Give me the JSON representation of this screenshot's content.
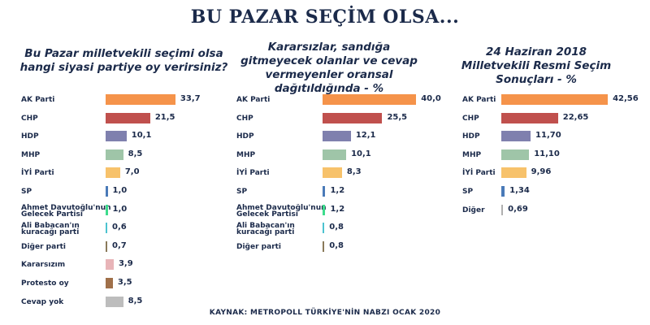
{
  "title": "BU PAZAR SEÇİM OLSA...",
  "source": "KAYNAK: METROPOLL TÜRKİYE'NİN NABZI OCAK 2020",
  "colors": {
    "AK Parti": "#f5934a",
    "CHP": "#c0504d",
    "HDP": "#7f80ae",
    "MHP": "#9fc5a8",
    "İYİ Parti": "#f7c26b",
    "SP": "#4a7ab8",
    "Ahmet Davutoğlu'nun Gelecek Partisi": "#3ddc8c",
    "Ali Babacan'ın kuracağı parti": "#4cc3d0",
    "Diğer parti": "#8a7a5a",
    "Diğer": "#b0b0b0",
    "Kararsızım": "#e8b4b8",
    "Protesto oy": "#a0704a",
    "Cevap yok": "#bdbdbd"
  },
  "chart_data": [
    {
      "type": "bar",
      "orientation": "horizontal",
      "title": "Bu Pazar milletvekili seçimi olsa hangi siyasi partiye oy verirsiniz?",
      "categories": [
        "AK Parti",
        "CHP",
        "HDP",
        "MHP",
        "İYİ Parti",
        "SP",
        "Ahmet Davutoğlu'nun Gelecek Partisi",
        "Ali Babacan'ın kuracağı parti",
        "Diğer parti",
        "Kararsızım",
        "Protesto oy",
        "Cevap yok"
      ],
      "values": [
        33.7,
        21.5,
        10.1,
        8.5,
        7.0,
        1.0,
        1.0,
        0.6,
        0.7,
        3.9,
        3.5,
        8.5
      ],
      "labels": [
        "33,7",
        "21,5",
        "10,1",
        "8,5",
        "7,0",
        "1,0",
        "1,0",
        "0,6",
        "0,7",
        "3,9",
        "3,5",
        "8,5"
      ]
    },
    {
      "type": "bar",
      "orientation": "horizontal",
      "title": "Kararsızlar, sandığa gitmeyecek olanlar ve cevap vermeyenler oransal dağıtıldığında - %",
      "categories": [
        "AK Parti",
        "CHP",
        "HDP",
        "MHP",
        "İYİ Parti",
        "SP",
        "Ahmet Davutoğlu'nun Gelecek Partisi",
        "Ali Babacan'ın kuracağı parti",
        "Diğer parti"
      ],
      "values": [
        40.0,
        25.5,
        12.1,
        10.1,
        8.3,
        1.2,
        1.2,
        0.8,
        0.8
      ],
      "labels": [
        "40,0",
        "25,5",
        "12,1",
        "10,1",
        "8,3",
        "1,2",
        "1,2",
        "0,8",
        "0,8"
      ]
    },
    {
      "type": "bar",
      "orientation": "horizontal",
      "title": "24 Haziran 2018 Milletvekili Resmi Seçim Sonuçları - %",
      "categories": [
        "AK Parti",
        "CHP",
        "HDP",
        "MHP",
        "İYİ Parti",
        "SP",
        "Diğer"
      ],
      "values": [
        42.56,
        22.65,
        11.7,
        11.1,
        9.96,
        1.34,
        0.69
      ],
      "labels": [
        "42,56",
        "22,65",
        "11,70",
        "11,10",
        "9,96",
        "1,34",
        "0,69"
      ]
    }
  ]
}
